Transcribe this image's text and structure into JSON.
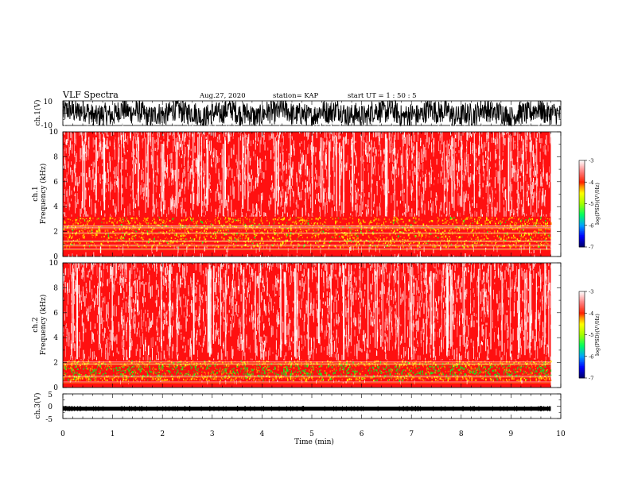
{
  "header": {
    "title": "VLF Spectra",
    "date": "Aug.27, 2020",
    "station": "station= KAP",
    "start": "start  UT =   1 : 50 : 5"
  },
  "chart_data": [
    {
      "type": "line",
      "ylabel": "ch.1(V)",
      "ylim": [
        -10,
        10
      ],
      "y_ticks": [
        "10",
        "-10"
      ],
      "xlim": [
        0,
        10
      ],
      "description_values": {
        "min": -10,
        "max": 10
      }
    },
    {
      "type": "heatmap",
      "ylabel": "ch.1\nFrequency  (kHz)",
      "ylim": [
        0,
        10
      ],
      "y_ticks": [
        "0",
        "2",
        "4",
        "6",
        "8",
        "10"
      ],
      "xlim": [
        0,
        10
      ],
      "data_end_min": 9.8,
      "colorbar": {
        "label": "log(PSD)(V²/Hz)",
        "ticks": [
          "-3",
          "-4",
          "-5",
          "-6",
          "-7"
        ],
        "range": [
          -7,
          -3
        ]
      },
      "band": {
        "low_khz": 0.8,
        "high_khz": 3.2,
        "peak_level": -4.2
      }
    },
    {
      "type": "heatmap",
      "ylabel": "ch.2\nFrequency  (kHz)",
      "ylim": [
        0,
        10
      ],
      "y_ticks": [
        "0",
        "2",
        "4",
        "6",
        "8",
        "10"
      ],
      "xlim": [
        0,
        10
      ],
      "data_end_min": 9.8,
      "colorbar": {
        "label": "log(PSD)(V²/Hz)",
        "ticks": [
          "-3",
          "-4",
          "-5",
          "-6",
          "-7"
        ],
        "range": [
          -7,
          -3
        ]
      },
      "band": {
        "low_khz": 0.6,
        "high_khz": 2.2,
        "peak_level": -4.6
      }
    },
    {
      "type": "line",
      "ylabel": "ch.3(V)",
      "ylim": [
        -5,
        5
      ],
      "y_ticks": [
        "5",
        "0",
        "-5"
      ],
      "xlim": [
        0,
        10
      ],
      "level": -1.0
    }
  ],
  "xaxis": {
    "label": "Time  (min)",
    "ticks": [
      "0",
      "1",
      "2",
      "3",
      "4",
      "5",
      "6",
      "7",
      "8",
      "9",
      "10"
    ]
  },
  "colors": {
    "red": "#ff1010",
    "orange": "#ff9000",
    "yellow": "#ffe600",
    "green": "#20e020"
  }
}
